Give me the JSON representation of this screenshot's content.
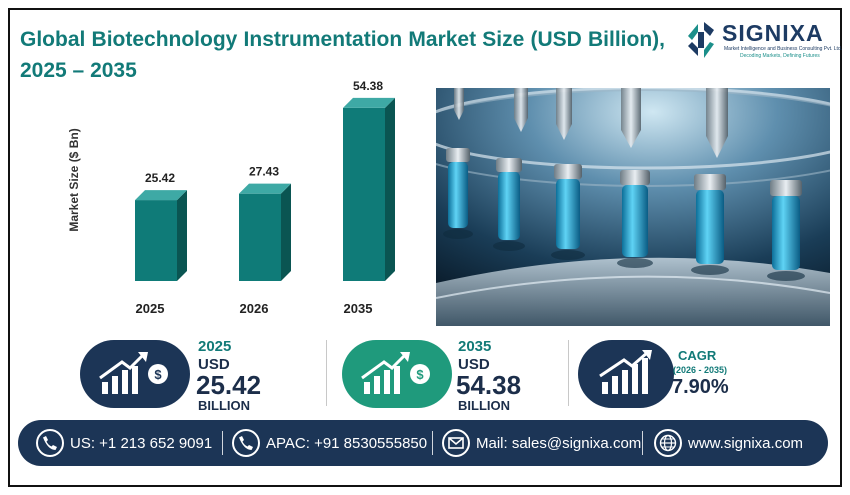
{
  "title": "Global Biotechnology Instrumentation Market Size (USD Billion), 2025 – 2035",
  "logo": {
    "name": "SIGNIXA",
    "tagline": "Market Intelligence and Business Consulting Pvt. Ltd.",
    "slogan": "Decoding Markets, Defining Futures"
  },
  "chart_data": {
    "type": "bar",
    "categories": [
      "2025",
      "2026",
      "2035"
    ],
    "values": [
      25.42,
      27.43,
      54.38
    ],
    "value_labels": [
      "25.42",
      "27.43",
      "54.38"
    ],
    "title": "",
    "xlabel": "",
    "ylabel": "Market Size ($ Bn)",
    "ylim": [
      0,
      60
    ],
    "grid": false,
    "bar_color": "#0f7b78",
    "bar_side_color": "#0a5552",
    "bar_top_color": "#3ea9a5"
  },
  "stats": {
    "s2025": {
      "year": "2025",
      "unit": "USD",
      "value": "25.42",
      "word": "BILLION",
      "icon": "growth-chart-money-icon",
      "color": "#1c3556"
    },
    "s2035": {
      "year": "2035",
      "unit": "USD",
      "value": "54.38",
      "word": "BILLION",
      "icon": "growth-chart-money-icon",
      "color": "#1f9a7c"
    },
    "cagr": {
      "label": "CAGR",
      "period": "(2026 - 2035)",
      "value": "7.90%",
      "icon": "bar-chart-arrow-icon",
      "color": "#1c3556"
    }
  },
  "contact": {
    "us": "US: +1 213 652 9091",
    "apac": "APAC: +91 8530555850",
    "mail": "Mail: sales@signixa.com",
    "web": "www.signixa.com"
  },
  "colors": {
    "teal": "#127a78",
    "navy": "#1c3556",
    "green": "#1f9a7c"
  }
}
